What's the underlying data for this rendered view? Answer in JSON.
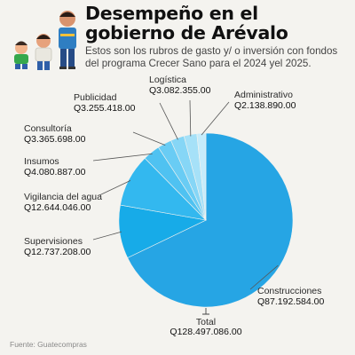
{
  "header": {
    "title_line1": "Desempeño en el",
    "title_line2": "gobierno de Arévalo",
    "subtitle_line1": "Estos son los rubros de gasto y/ o inversión con fondos",
    "subtitle_line2": "del programa Crecer Sano para el 2024 yel 2025."
  },
  "footer": {
    "source": "Fuente: Guatecompras"
  },
  "chart_data": {
    "type": "pie",
    "title": "Desempeño en el gobierno de Arévalo",
    "slices": [
      {
        "label": "Construcciones",
        "value": 87192584.0,
        "value_label": "Q87.192.584.00",
        "color": "#26a5e4"
      },
      {
        "label": "Supervisiones",
        "value": 12737208.0,
        "value_label": "Q12.737.208.00",
        "color": "#17abe8"
      },
      {
        "label": "Vigilancia del agua",
        "value": 12644046.0,
        "value_label": "Q12.644.046.00",
        "color": "#33b8ef"
      },
      {
        "label": "Insumos",
        "value": 4080887.0,
        "value_label": "Q4.080.887.00",
        "color": "#4fc2f1"
      },
      {
        "label": "Consultoría",
        "value": 3365698.0,
        "value_label": "Q3.365.698.00",
        "color": "#69ccf4"
      },
      {
        "label": "Publicidad",
        "value": 3255418.0,
        "value_label": "Q3.255.418.00",
        "color": "#86d6f6"
      },
      {
        "label": "Logística",
        "value": 3082355.0,
        "value_label": "Q3.082.355.00",
        "color": "#a6e1f8"
      },
      {
        "label": "Administrativo",
        "value": 2138890.0,
        "value_label": "Q2.138.890.00",
        "color": "#c6ecfb"
      }
    ],
    "total": {
      "label": "Total",
      "value": 128497086.0,
      "value_label": "Q128.497.086.00"
    }
  }
}
